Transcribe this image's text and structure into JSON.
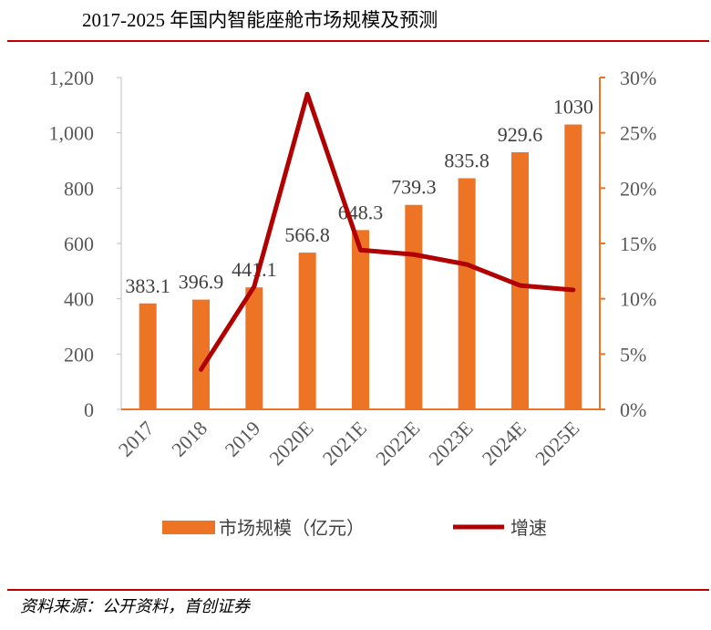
{
  "title": "2017-2025 年国内智能座舱市场规模及预测",
  "source": "资料来源：公开资料，首创证券",
  "colors": {
    "bar": "#ed7424",
    "line": "#b00000",
    "axis": "#ed7424",
    "rule": "#c00000"
  },
  "chart_data": {
    "type": "bar",
    "categories": [
      "2017",
      "2018",
      "2019",
      "2020E",
      "2021E",
      "2022E",
      "2023E",
      "2024E",
      "2025E"
    ],
    "series": [
      {
        "name": "市场规模（亿元）",
        "type": "bar",
        "axis": "left",
        "values": [
          383.1,
          396.9,
          441.1,
          566.8,
          648.3,
          739.3,
          835.8,
          929.6,
          1030
        ],
        "labels": [
          "383.1",
          "396.9",
          "441.1",
          "566.8",
          "648.3",
          "739.3",
          "835.8",
          "929.6",
          "1030"
        ]
      },
      {
        "name": "增速",
        "type": "line",
        "axis": "right",
        "values": [
          null,
          3.6,
          11.1,
          28.5,
          14.4,
          14.0,
          13.1,
          11.2,
          10.8
        ]
      }
    ],
    "ylim": [
      0,
      1200
    ],
    "y_ticks": [
      "0",
      "200",
      "400",
      "600",
      "800",
      "1,000",
      "1,200"
    ],
    "y2lim": [
      0,
      30
    ],
    "y2_ticks": [
      "0%",
      "5%",
      "10%",
      "15%",
      "20%",
      "25%",
      "30%"
    ],
    "legend_position": "bottom",
    "grid": false
  }
}
